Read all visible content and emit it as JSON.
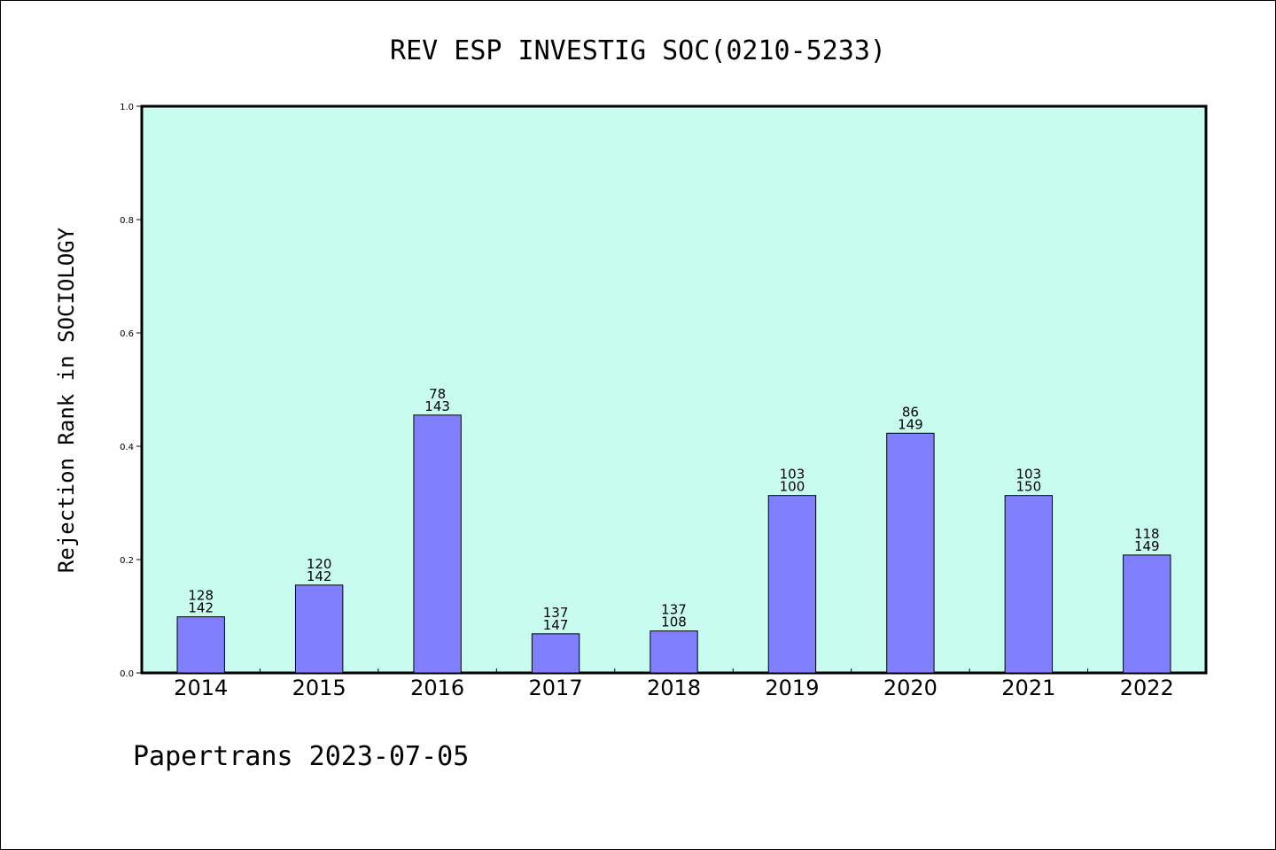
{
  "chart_data": {
    "type": "bar",
    "title": "REV ESP INVESTIG SOC(0210-5233)",
    "xlabel": "",
    "ylabel": "Rejection Rank in SOCIOLOGY",
    "ylim": [
      0,
      1.0
    ],
    "yticks": [
      "0.0",
      "0.2",
      "0.4",
      "0.6",
      "0.8",
      "1.0"
    ],
    "categories": [
      "2014",
      "2015",
      "2016",
      "2017",
      "2018",
      "2019",
      "2020",
      "2021",
      "2022"
    ],
    "values": [
      0.099,
      0.155,
      0.455,
      0.069,
      0.074,
      0.313,
      0.423,
      0.313,
      0.208
    ],
    "labels_top": [
      "128",
      "120",
      "78",
      "137",
      "137",
      "103",
      "86",
      "103",
      "118"
    ],
    "labels_bottom": [
      "142",
      "142",
      "143",
      "147",
      "108",
      "100",
      "149",
      "150",
      "149"
    ],
    "grid": false,
    "colors": {
      "plot_background": "#c8fcee",
      "bar_fill": "#8080ff",
      "bar_stroke": "#000000"
    }
  },
  "footer": "Papertrans 2023-07-05"
}
